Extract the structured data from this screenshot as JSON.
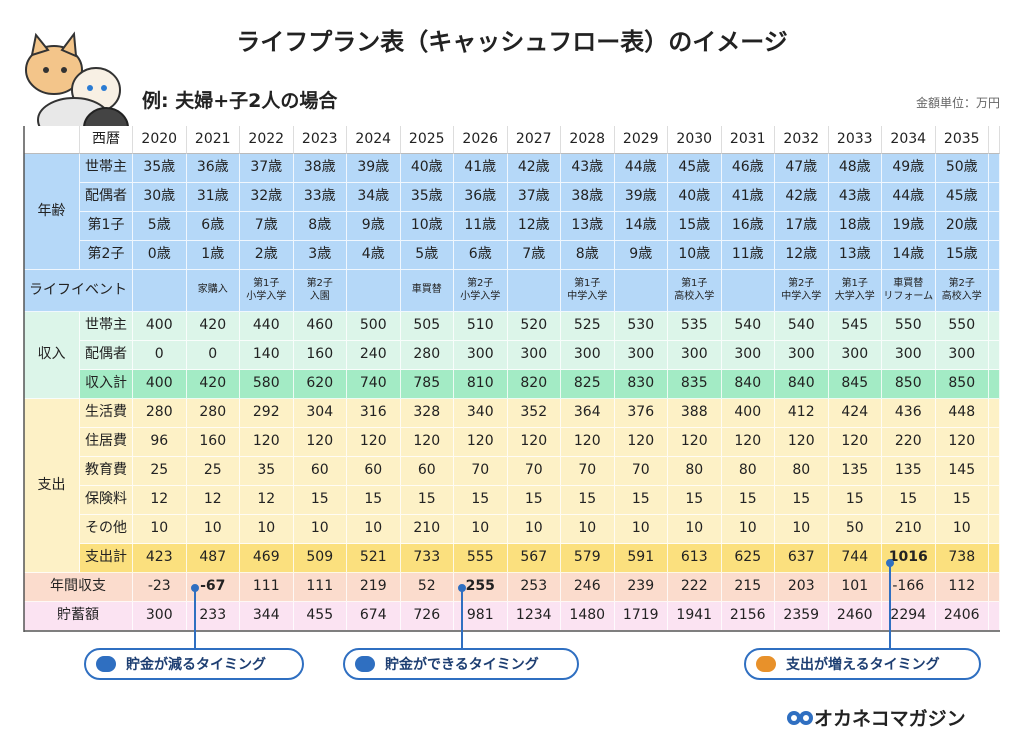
{
  "title": "ライフプラン表（キャッシュフロー表）のイメージ",
  "subtitle": "例: 夫婦+子2人の場合",
  "unit": "金額単位：万円",
  "table": {
    "header": {
      "label": "西暦",
      "years": [
        2020,
        2021,
        2022,
        2023,
        2024,
        2025,
        2026,
        2027,
        2028,
        2029,
        2030,
        2031,
        2032,
        2033,
        2034,
        2035
      ]
    },
    "age": {
      "label": "年齢",
      "rows": [
        {
          "label": "世帯主",
          "cells": [
            "35歳",
            "36歳",
            "37歳",
            "38歳",
            "39歳",
            "40歳",
            "41歳",
            "42歳",
            "43歳",
            "44歳",
            "45歳",
            "46歳",
            "47歳",
            "48歳",
            "49歳",
            "50歳"
          ]
        },
        {
          "label": "配偶者",
          "cells": [
            "30歳",
            "31歳",
            "32歳",
            "33歳",
            "34歳",
            "35歳",
            "36歳",
            "37歳",
            "38歳",
            "39歳",
            "40歳",
            "41歳",
            "42歳",
            "43歳",
            "44歳",
            "45歳"
          ]
        },
        {
          "label": "第1子",
          "cells": [
            "5歳",
            "6歳",
            "7歳",
            "8歳",
            "9歳",
            "10歳",
            "11歳",
            "12歳",
            "13歳",
            "14歳",
            "15歳",
            "16歳",
            "17歳",
            "18歳",
            "19歳",
            "20歳"
          ]
        },
        {
          "label": "第2子",
          "cells": [
            "0歳",
            "1歳",
            "2歳",
            "3歳",
            "4歳",
            "5歳",
            "6歳",
            "7歳",
            "8歳",
            "9歳",
            "10歳",
            "11歳",
            "12歳",
            "13歳",
            "14歳",
            "15歳"
          ]
        }
      ]
    },
    "events": {
      "label": "ライフイベント",
      "cells": [
        null,
        "家購入",
        "第1子\n小学入学",
        "第2子\n入園",
        null,
        "車買替",
        "第2子\n小学入学",
        null,
        "第1子\n中学入学",
        null,
        "第1子\n高校入学",
        null,
        "第2子\n中学入学",
        "第1子\n大学入学",
        "車買替\nリフォーム",
        "第2子\n高校入学"
      ]
    },
    "income": {
      "label": "収入",
      "rows": [
        {
          "label": "世帯主",
          "cells": [
            400,
            420,
            440,
            460,
            500,
            505,
            510,
            520,
            525,
            530,
            535,
            540,
            540,
            545,
            550,
            550
          ]
        },
        {
          "label": "配偶者",
          "cells": [
            0,
            0,
            140,
            160,
            240,
            280,
            300,
            300,
            300,
            300,
            300,
            300,
            300,
            300,
            300,
            300
          ]
        },
        {
          "label": "収入計",
          "cells": [
            400,
            420,
            580,
            620,
            740,
            785,
            810,
            820,
            825,
            830,
            835,
            840,
            840,
            845,
            850,
            850
          ]
        }
      ]
    },
    "expense": {
      "label": "支出",
      "rows": [
        {
          "label": "生活費",
          "cells": [
            280,
            280,
            292,
            304,
            316,
            328,
            340,
            352,
            364,
            376,
            388,
            400,
            412,
            424,
            436,
            448
          ]
        },
        {
          "label": "住居費",
          "cells": [
            96,
            160,
            120,
            120,
            120,
            120,
            120,
            120,
            120,
            120,
            120,
            120,
            120,
            120,
            220,
            120
          ]
        },
        {
          "label": "教育費",
          "cells": [
            25,
            25,
            35,
            60,
            60,
            60,
            70,
            70,
            70,
            70,
            80,
            80,
            80,
            135,
            135,
            145
          ]
        },
        {
          "label": "保険料",
          "cells": [
            12,
            12,
            12,
            15,
            15,
            15,
            15,
            15,
            15,
            15,
            15,
            15,
            15,
            15,
            15,
            15
          ]
        },
        {
          "label": "その他",
          "cells": [
            10,
            10,
            10,
            10,
            10,
            210,
            10,
            10,
            10,
            10,
            10,
            10,
            10,
            50,
            210,
            10
          ]
        },
        {
          "label": "支出計",
          "cells": [
            423,
            487,
            469,
            509,
            521,
            733,
            555,
            567,
            579,
            591,
            613,
            625,
            637,
            744,
            1016,
            738
          ]
        }
      ]
    },
    "balance": {
      "label": "年間収支",
      "cells": [
        -23,
        -67,
        111,
        111,
        219,
        52,
        255,
        253,
        246,
        239,
        222,
        215,
        203,
        101,
        -166,
        112
      ]
    },
    "savings": {
      "label": "貯蓄額",
      "cells": [
        300,
        233,
        344,
        455,
        674,
        726,
        981,
        1234,
        1480,
        1719,
        1941,
        2156,
        2359,
        2460,
        2294,
        2406
      ]
    }
  },
  "callouts": [
    "貯金が減るタイミング",
    "貯金ができるタイミング",
    "支出が増えるタイミング"
  ],
  "brand": "オカネコマガジン"
}
